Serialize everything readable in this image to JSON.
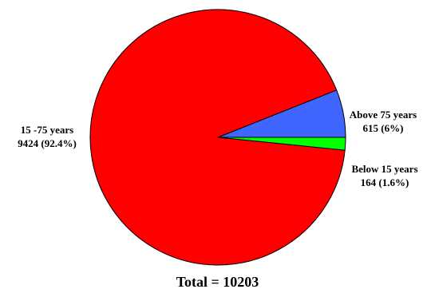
{
  "chart_data": {
    "type": "pie",
    "title": "",
    "total_label": "Total = 10203",
    "slices": [
      {
        "category": "15 -75 years",
        "value": 9424,
        "label_value": "9424 (92.4%)",
        "color": "#ff0000"
      },
      {
        "category": "Above 75 years",
        "value": 615,
        "label_value": "615 (6%)",
        "color": "#3f66ff"
      },
      {
        "category": "Below 15 years",
        "value": 164,
        "label_value": "164 (1.6%)",
        "color": "#00ff00"
      }
    ],
    "legend": "none"
  }
}
